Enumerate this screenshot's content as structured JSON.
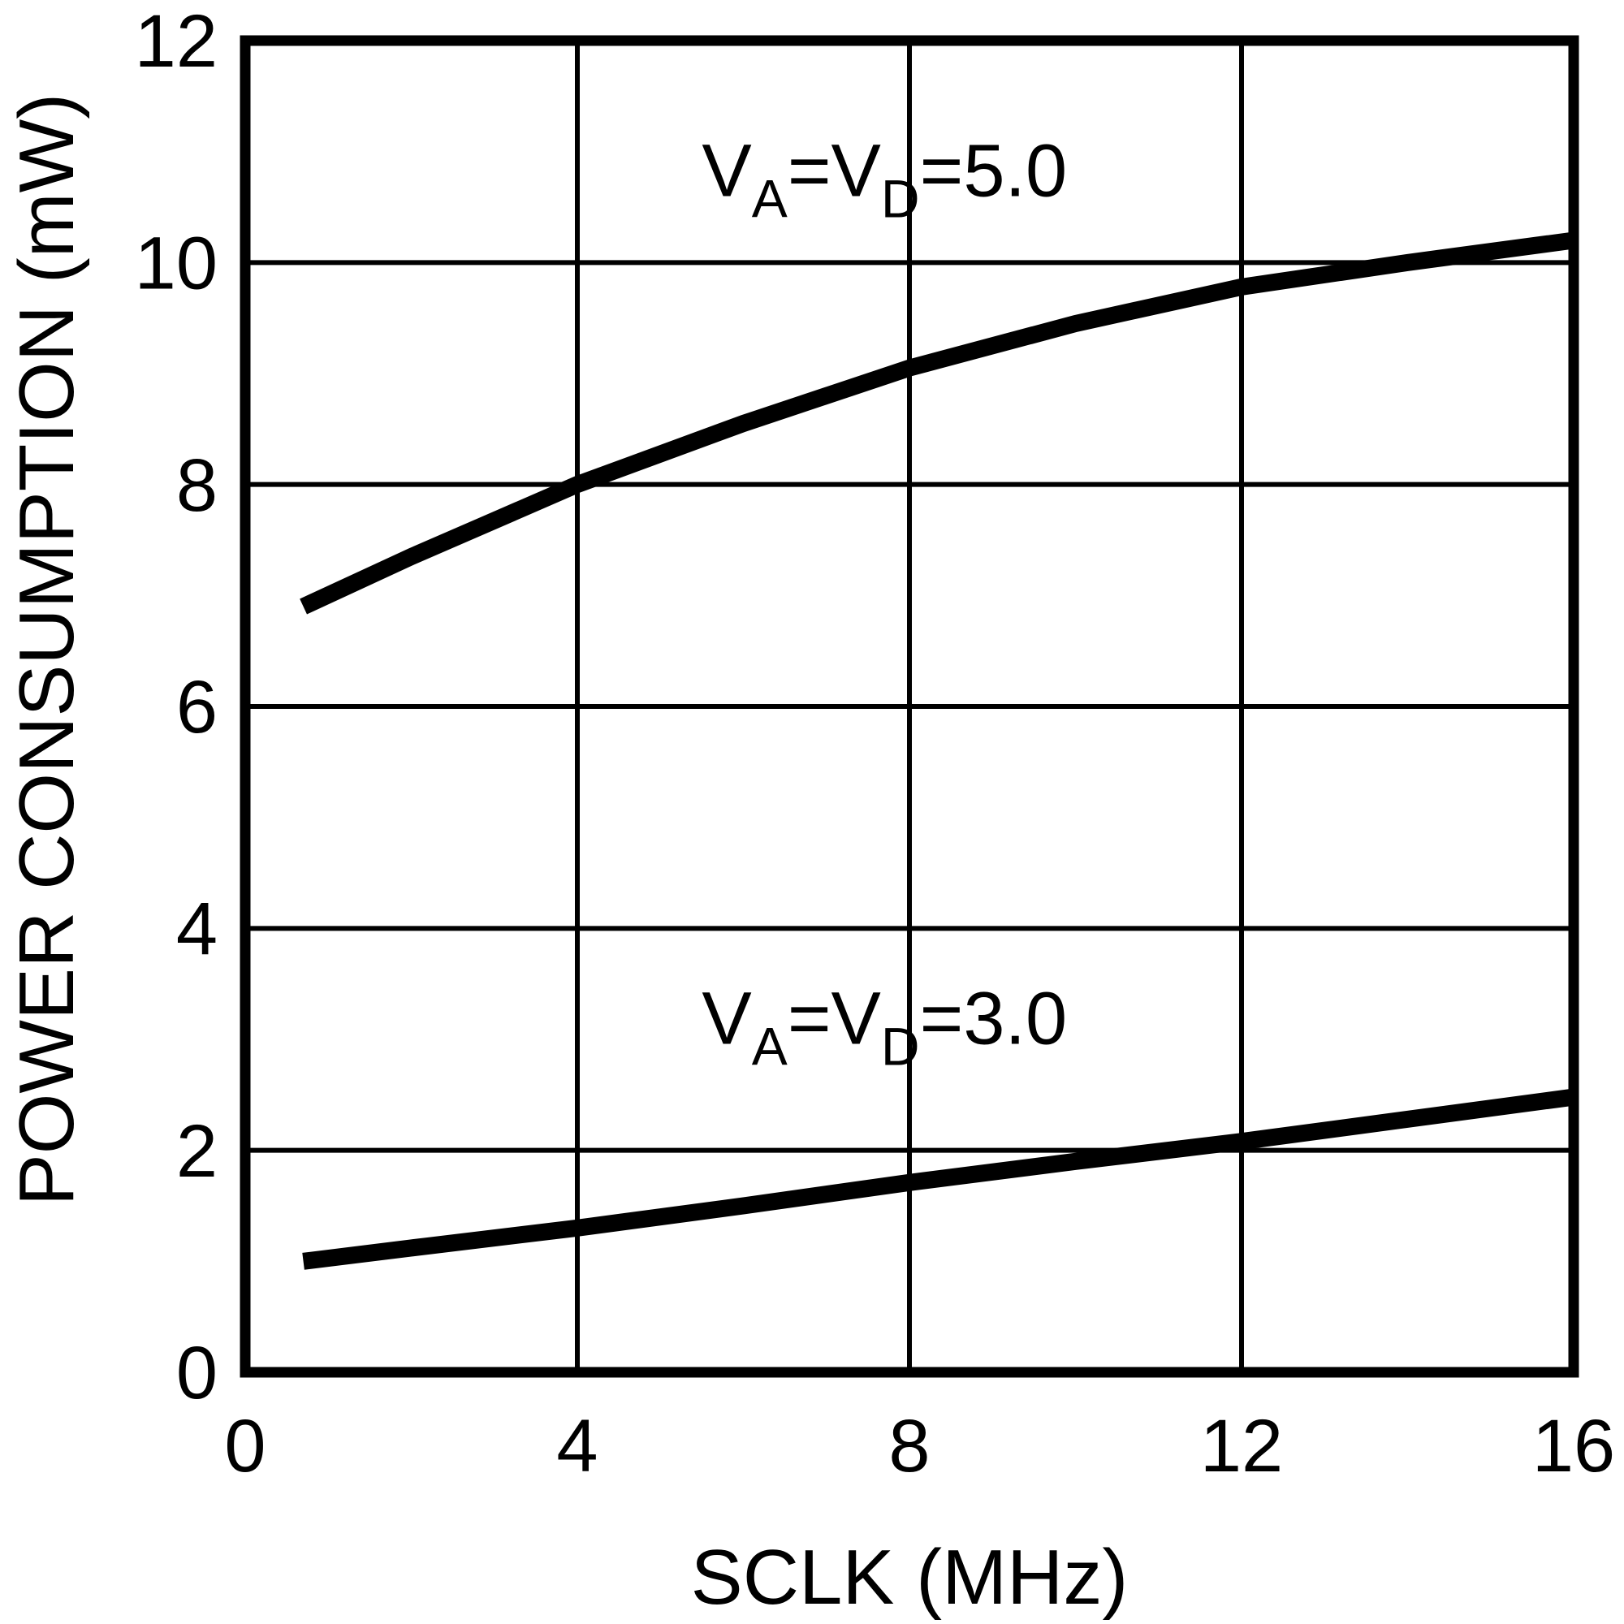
{
  "chart_data": {
    "type": "line",
    "title": "",
    "xlabel": "SCLK (MHz)",
    "ylabel": "POWER CONSUMPTION (mW)",
    "xlim": [
      0,
      16
    ],
    "ylim": [
      0,
      12
    ],
    "xticks": [
      0,
      4,
      8,
      12,
      16
    ],
    "yticks": [
      0,
      2,
      4,
      6,
      8,
      10,
      12
    ],
    "grid": true,
    "legend_position": "none",
    "colors": {
      "line": "#000000",
      "grid": "#000000",
      "background": "#ffffff",
      "text": "#000000"
    },
    "series": [
      {
        "name": "VA=VD=5.0",
        "x": [
          0.7,
          2,
          4,
          6,
          8,
          10,
          12,
          14,
          16
        ],
        "values": [
          6.9,
          7.35,
          8.0,
          8.55,
          9.05,
          9.45,
          9.78,
          10.0,
          10.2
        ]
      },
      {
        "name": "VA=VD=3.0",
        "x": [
          0.7,
          2,
          4,
          6,
          8,
          10,
          12,
          14,
          16
        ],
        "values": [
          1.0,
          1.12,
          1.3,
          1.5,
          1.71,
          1.9,
          2.08,
          2.28,
          2.48
        ]
      }
    ],
    "annotations": [
      {
        "label": "VA=VD=5.0",
        "x": 7.7,
        "y": 10.6,
        "parts": [
          {
            "text": "V",
            "sub": false
          },
          {
            "text": "A",
            "sub": true
          },
          {
            "text": "=V",
            "sub": false
          },
          {
            "text": "D",
            "sub": true
          },
          {
            "text": "=5.0",
            "sub": false
          }
        ]
      },
      {
        "label": "VA=VD=3.0",
        "x": 7.7,
        "y": 2.96,
        "parts": [
          {
            "text": "V",
            "sub": false
          },
          {
            "text": "A",
            "sub": true
          },
          {
            "text": "=V",
            "sub": false
          },
          {
            "text": "D",
            "sub": true
          },
          {
            "text": "=3.0",
            "sub": false
          }
        ]
      }
    ]
  }
}
